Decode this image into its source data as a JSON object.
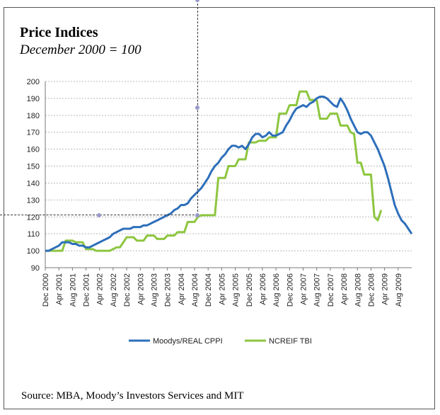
{
  "title": "Price Indices",
  "subtitle": "December 2000 = 100",
  "source": "Source: MBA, Moody’s Investors Services and MIT",
  "chart_data": {
    "type": "line",
    "title": "Price Indices",
    "subtitle": "December 2000 = 100",
    "xlabel": "",
    "ylabel": "",
    "ylim": [
      90,
      200
    ],
    "yticks": [
      90,
      100,
      110,
      120,
      130,
      140,
      150,
      160,
      170,
      180,
      190,
      200
    ],
    "xticks": [
      "Dec 2000",
      "Apr 2001",
      "Aug 2001",
      "Dec 2001",
      "Apr 2002",
      "Aug 2002",
      "Dec 2002",
      "Apr 2003",
      "Aug 2003",
      "Dec 2003",
      "Apr 2004",
      "Aug 2004",
      "Dec 2004",
      "Apr 2005",
      "Aug 2005",
      "Dec 2005",
      "Apr 2006",
      "Aug 2006",
      "Dec 2006",
      "Apr 2007",
      "Aug 2007",
      "Dec 2007",
      "Apr 2008",
      "Aug 2008",
      "Dec 2008",
      "Apr 2009",
      "Aug 2009"
    ],
    "grid": true,
    "legend": "bottom",
    "series": [
      {
        "name": "Moodys/REAL CPPI",
        "color": "#2e6fba",
        "points": [
          [
            0,
            100
          ],
          [
            1,
            100
          ],
          [
            2,
            101
          ],
          [
            3,
            102
          ],
          [
            4,
            103
          ],
          [
            5,
            105
          ],
          [
            6,
            105
          ],
          [
            7,
            105
          ],
          [
            8,
            104
          ],
          [
            9,
            104
          ],
          [
            10,
            103
          ],
          [
            11,
            103
          ],
          [
            12,
            102
          ],
          [
            13,
            102
          ],
          [
            14,
            103
          ],
          [
            15,
            104
          ],
          [
            16,
            105
          ],
          [
            17,
            106
          ],
          [
            18,
            107
          ],
          [
            19,
            108
          ],
          [
            20,
            110
          ],
          [
            21,
            111
          ],
          [
            22,
            112
          ],
          [
            23,
            113
          ],
          [
            24,
            113
          ],
          [
            25,
            113
          ],
          [
            26,
            114
          ],
          [
            27,
            114
          ],
          [
            28,
            114
          ],
          [
            29,
            115
          ],
          [
            30,
            115
          ],
          [
            31,
            116
          ],
          [
            32,
            117
          ],
          [
            33,
            118
          ],
          [
            34,
            119
          ],
          [
            35,
            120
          ],
          [
            36,
            121
          ],
          [
            37,
            122
          ],
          [
            38,
            124
          ],
          [
            39,
            125
          ],
          [
            40,
            127
          ],
          [
            41,
            127
          ],
          [
            42,
            128
          ],
          [
            43,
            131
          ],
          [
            44,
            133
          ],
          [
            45,
            135
          ],
          [
            46,
            137
          ],
          [
            47,
            140
          ],
          [
            48,
            143
          ],
          [
            49,
            147
          ],
          [
            50,
            150
          ],
          [
            51,
            152
          ],
          [
            52,
            155
          ],
          [
            53,
            157
          ],
          [
            54,
            160
          ],
          [
            55,
            162
          ],
          [
            56,
            162
          ],
          [
            57,
            161
          ],
          [
            58,
            162
          ],
          [
            59,
            160
          ],
          [
            60,
            163
          ],
          [
            61,
            167
          ],
          [
            62,
            169
          ],
          [
            63,
            169
          ],
          [
            64,
            167
          ],
          [
            65,
            168
          ],
          [
            66,
            170
          ],
          [
            67,
            168
          ],
          [
            68,
            168
          ],
          [
            69,
            169
          ],
          [
            70,
            170
          ],
          [
            71,
            174
          ],
          [
            72,
            177
          ],
          [
            73,
            181
          ],
          [
            74,
            184
          ],
          [
            75,
            185
          ],
          [
            76,
            186
          ],
          [
            77,
            185
          ],
          [
            78,
            187
          ],
          [
            79,
            188
          ],
          [
            80,
            190
          ],
          [
            81,
            191
          ],
          [
            82,
            191
          ],
          [
            83,
            190
          ],
          [
            84,
            188
          ],
          [
            85,
            186
          ],
          [
            86,
            185
          ],
          [
            87,
            190
          ],
          [
            88,
            187
          ],
          [
            89,
            183
          ],
          [
            90,
            178
          ],
          [
            91,
            174
          ],
          [
            92,
            170
          ],
          [
            93,
            169
          ],
          [
            94,
            170
          ],
          [
            95,
            170
          ],
          [
            96,
            168
          ],
          [
            97,
            164
          ],
          [
            98,
            160
          ],
          [
            99,
            155
          ],
          [
            100,
            150
          ],
          [
            101,
            143
          ],
          [
            102,
            135
          ],
          [
            103,
            127
          ],
          [
            104,
            122
          ],
          [
            105,
            118
          ],
          [
            106,
            116
          ],
          [
            107,
            113
          ],
          [
            108,
            110
          ]
        ]
      },
      {
        "name": "NCREIF TBI",
        "color": "#8dc63f",
        "points": [
          [
            0,
            100
          ],
          [
            2,
            100
          ],
          [
            3,
            100
          ],
          [
            5,
            100
          ],
          [
            6,
            106
          ],
          [
            8,
            106
          ],
          [
            9,
            105
          ],
          [
            11,
            105
          ],
          [
            12,
            101
          ],
          [
            14,
            101
          ],
          [
            15,
            100
          ],
          [
            18,
            100
          ],
          [
            19,
            100
          ],
          [
            21,
            102
          ],
          [
            22,
            102
          ],
          [
            24,
            108
          ],
          [
            26,
            108
          ],
          [
            27,
            106
          ],
          [
            29,
            106
          ],
          [
            30,
            109
          ],
          [
            32,
            109
          ],
          [
            33,
            107
          ],
          [
            35,
            107
          ],
          [
            36,
            109
          ],
          [
            38,
            109
          ],
          [
            39,
            111
          ],
          [
            41,
            111
          ],
          [
            42,
            117
          ],
          [
            44,
            117
          ],
          [
            45,
            120
          ],
          [
            46,
            121
          ],
          [
            48,
            121
          ],
          [
            50,
            121
          ],
          [
            51,
            143
          ],
          [
            53,
            143
          ],
          [
            54,
            150
          ],
          [
            56,
            150
          ],
          [
            57,
            154
          ],
          [
            59,
            154
          ],
          [
            60,
            164
          ],
          [
            62,
            164
          ],
          [
            63,
            165
          ],
          [
            65,
            165
          ],
          [
            66,
            167
          ],
          [
            68,
            167
          ],
          [
            69,
            181
          ],
          [
            71,
            181
          ],
          [
            72,
            186
          ],
          [
            74,
            186
          ],
          [
            75,
            194
          ],
          [
            77,
            194
          ],
          [
            78,
            189
          ],
          [
            80,
            189
          ],
          [
            81,
            178
          ],
          [
            83,
            178
          ],
          [
            84,
            181
          ],
          [
            86,
            181
          ],
          [
            87,
            174
          ],
          [
            89,
            174
          ],
          [
            90,
            170
          ],
          [
            91,
            169
          ],
          [
            92,
            152
          ],
          [
            93,
            152
          ],
          [
            94,
            145
          ],
          [
            96,
            145
          ],
          [
            97,
            120
          ],
          [
            98,
            118
          ],
          [
            99,
            124
          ]
        ]
      }
    ]
  }
}
